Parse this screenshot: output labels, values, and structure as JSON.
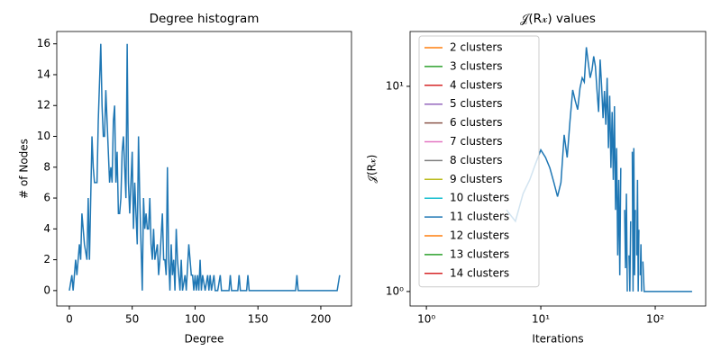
{
  "chart_data": [
    {
      "type": "line",
      "title": "Degree histogram",
      "xlabel": "Degree",
      "ylabel": "# of Nodes",
      "xscale": "linear",
      "yscale": "linear",
      "xlim": [
        -10,
        224.4
      ],
      "ylim": [
        -1,
        16.8
      ],
      "xticks": [
        0,
        50,
        100,
        150,
        200
      ],
      "yticks": [
        0,
        2,
        4,
        6,
        8,
        10,
        12,
        14,
        16
      ],
      "series": [
        {
          "name": null,
          "color": "#1f77b4",
          "x": [
            0,
            2,
            3,
            5,
            6,
            8,
            9,
            10,
            12,
            14,
            15,
            16,
            18,
            19,
            20,
            22,
            23,
            25,
            26,
            27,
            28,
            29,
            30,
            31,
            32,
            33,
            34,
            35,
            36,
            37,
            38,
            39,
            40,
            41,
            42,
            43,
            45,
            46,
            47,
            48,
            50,
            51,
            52,
            54,
            55,
            56,
            57,
            58,
            59,
            60,
            61,
            62,
            63,
            64,
            65,
            66,
            67,
            68,
            70,
            71,
            72,
            74,
            75,
            76,
            77,
            78,
            79,
            80,
            81,
            82,
            83,
            84,
            85,
            86,
            87,
            88,
            89,
            90,
            92,
            93,
            95,
            96,
            97,
            98,
            99,
            100,
            101,
            102,
            103,
            104,
            105,
            106,
            108,
            110,
            111,
            112,
            113,
            115,
            116,
            118,
            120,
            121,
            127,
            128,
            129,
            134,
            135,
            136,
            141,
            142,
            143,
            180,
            181,
            182,
            213,
            215
          ],
          "values": [
            0,
            1,
            0,
            2,
            1,
            3,
            2,
            5,
            3,
            2,
            6,
            2,
            10,
            8,
            7,
            7,
            11,
            16,
            12,
            10,
            10,
            13,
            11,
            9,
            7,
            8,
            7,
            11,
            12,
            7,
            9,
            5,
            5,
            6,
            9,
            10,
            6,
            16,
            7,
            5,
            9,
            4,
            7,
            3,
            10,
            6,
            3,
            0,
            6,
            4,
            5,
            4,
            4,
            6,
            3,
            2,
            4,
            2,
            3,
            1,
            2,
            5,
            2,
            2,
            1,
            8,
            2,
            0,
            3,
            1,
            2,
            0,
            4,
            2,
            1,
            0,
            2,
            0,
            1,
            0,
            3,
            2,
            1,
            1,
            0,
            1,
            0,
            1,
            0,
            2,
            0,
            1,
            0,
            1,
            0,
            1,
            0,
            1,
            0,
            0,
            1,
            0,
            0,
            1,
            0,
            0,
            1,
            0,
            0,
            1,
            0,
            0,
            1,
            0,
            0,
            1
          ]
        }
      ]
    },
    {
      "type": "line",
      "title": "𝒥(R𝓍) values",
      "xlabel": "Iterations",
      "ylabel": "𝒥(R𝓍)",
      "xscale": "log",
      "yscale": "log",
      "xlim": [
        0.72,
        276
      ],
      "ylim": [
        0.85,
        18.5
      ],
      "xticks": [
        {
          "value": 1,
          "label": "10⁰"
        },
        {
          "value": 10,
          "label": "10¹"
        },
        {
          "value": 100,
          "label": "10²"
        }
      ],
      "yticks": [
        {
          "value": 1,
          "label": "10⁰"
        },
        {
          "value": 10,
          "label": "10¹"
        }
      ],
      "legend": "upper left",
      "series": [
        {
          "name": "2 clusters",
          "color": "#ff7f0e",
          "x": [
            2
          ],
          "values": [
            1
          ]
        },
        {
          "name": "3 clusters",
          "color": "#2ca02c",
          "x": [
            2
          ],
          "values": [
            1
          ]
        },
        {
          "name": "4 clusters",
          "color": "#d62728",
          "x": [
            2
          ],
          "values": [
            1
          ]
        },
        {
          "name": "5 clusters",
          "color": "#9467bd",
          "x": [
            2
          ],
          "values": [
            1
          ]
        },
        {
          "name": "6 clusters",
          "color": "#8c564b",
          "x": [
            2
          ],
          "values": [
            1
          ]
        },
        {
          "name": "7 clusters",
          "color": "#e377c2",
          "x": [
            2
          ],
          "values": [
            1
          ]
        },
        {
          "name": "8 clusters",
          "color": "#7f7f7f",
          "x": [
            2
          ],
          "values": [
            1
          ]
        },
        {
          "name": "9 clusters",
          "color": "#bcbd22",
          "x": [
            2
          ],
          "values": [
            1
          ]
        },
        {
          "name": "10 clusters",
          "color": "#17becf",
          "x": [
            2
          ],
          "values": [
            1
          ]
        },
        {
          "name": "11 clusters",
          "color": "#1f77b4",
          "x": [
            2,
            3,
            5,
            6,
            7,
            8,
            9,
            10,
            11,
            12,
            13,
            14,
            15,
            16,
            17,
            18,
            19,
            20,
            21,
            22,
            23,
            24,
            25,
            26,
            27,
            28,
            29,
            30,
            31,
            32,
            33,
            34,
            35,
            36,
            37,
            38,
            39,
            40,
            41,
            42,
            43,
            44,
            45,
            46,
            47,
            48,
            49,
            50,
            51,
            52,
            53,
            54,
            55,
            56,
            57,
            58,
            59,
            60,
            61,
            62,
            63,
            64,
            65,
            66,
            67,
            68,
            69,
            70,
            71,
            72,
            73,
            74,
            75,
            76,
            77,
            78,
            80,
            82,
            85,
            88,
            90,
            95,
            100,
            110,
            120,
            150,
            160,
            200,
            210
          ],
          "values": [
            1,
            null,
            2.5,
            2.2,
            3,
            3.5,
            4.2,
            4.9,
            4.5,
            4,
            3.4,
            2.9,
            3.4,
            5.8,
            4.5,
            6.8,
            9.6,
            8.5,
            7.7,
            9.8,
            11,
            10.5,
            15.5,
            13,
            11,
            12,
            14,
            12.5,
            9.5,
            7.5,
            13.5,
            10,
            7,
            9.5,
            6.5,
            11,
            5,
            9,
            4,
            7.5,
            3.5,
            8,
            2.5,
            5,
            1.5,
            3.5,
            1.2,
            4,
            null,
            1.8,
            null,
            2.5,
            1.3,
            3,
            1,
            null,
            1.5,
            1,
            2.2,
            null,
            4.8,
            1,
            5,
            1.2,
            2.5,
            null,
            1.5,
            3.5,
            1,
            2,
            null,
            1.2,
            1.7,
            1,
            null,
            1.4,
            1,
            1,
            1,
            1,
            1,
            1,
            1,
            1,
            1,
            1,
            1,
            1,
            1
          ]
        },
        {
          "name": "12 clusters",
          "color": "#ff7f0e",
          "x": [
            2
          ],
          "values": [
            1
          ]
        },
        {
          "name": "13 clusters",
          "color": "#2ca02c",
          "x": [
            2
          ],
          "values": [
            1
          ]
        },
        {
          "name": "14 clusters",
          "color": "#d62728",
          "x": [
            2
          ],
          "values": [
            1
          ]
        }
      ]
    }
  ]
}
